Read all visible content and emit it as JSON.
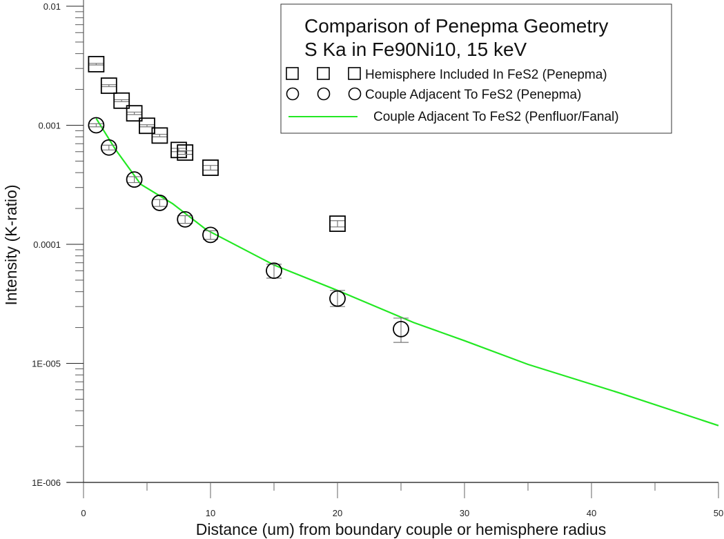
{
  "chart_data": {
    "type": "scatter",
    "title": "Comparison of Penepma Geometry",
    "subtitle": "S Ka in Fe90Ni10, 15 keV",
    "xlabel": "Distance (um) from boundary couple or hemisphere radius",
    "ylabel": "Intensity (K-ratio)",
    "xlim": [
      0,
      50
    ],
    "ylim": [
      1e-06,
      0.01
    ],
    "yscale": "log",
    "grid": false,
    "legend_position": "top-right",
    "x_ticks": [
      "0",
      "10",
      "20",
      "30",
      "40",
      "50"
    ],
    "x_tick_values": [
      0,
      10,
      20,
      30,
      40,
      50
    ],
    "y_ticks": [
      "0.01",
      "0.001",
      "0.0001",
      "1E-005",
      "1E-006"
    ],
    "y_tick_values": [
      0.01,
      0.001,
      0.0001,
      1e-05,
      1e-06
    ],
    "series": [
      {
        "name": "Hemisphere Included In FeS2 (Penepma)",
        "marker": "square",
        "color": "#000000",
        "x": [
          1,
          2,
          3,
          4,
          5,
          6,
          7.5,
          8,
          10,
          20
        ],
        "y": [
          0.00326,
          0.00215,
          0.00161,
          0.00126,
          0.00099,
          0.00082,
          0.00062,
          0.00059,
          0.00044,
          0.000149
        ],
        "err_low": [
          0.00321,
          0.00211,
          0.00158,
          0.00123,
          0.00097,
          0.0008,
          0.0006,
          0.00057,
          0.00042,
          0.00014
        ],
        "err_high": [
          0.00331,
          0.00219,
          0.00164,
          0.00129,
          0.00101,
          0.00084,
          0.00064,
          0.00061,
          0.00046,
          0.000158
        ]
      },
      {
        "name": "Couple Adjacent To FeS2 (Penepma)",
        "marker": "circle",
        "color": "#000000",
        "x": [
          1,
          2,
          4,
          6,
          8,
          10,
          15,
          20,
          25
        ],
        "y": [
          0.001,
          0.00065,
          0.00035,
          0.000223,
          0.000162,
          0.00012,
          6e-05,
          3.5e-05,
          1.94e-05
        ],
        "err_low": [
          0.00097,
          0.00062,
          0.00033,
          0.000208,
          0.00015,
          0.00011,
          5.2e-05,
          3e-05,
          1.5e-05
        ],
        "err_high": [
          0.00103,
          0.00068,
          0.00037,
          0.000238,
          0.000174,
          0.00013,
          6.8e-05,
          4.1e-05,
          2.4e-05
        ]
      },
      {
        "name": "Couple Adjacent To FeS2 (Penfluor/Fanal)",
        "marker": "line",
        "color": "#22e822",
        "x": [
          1,
          2.5,
          4.5,
          7,
          9.7,
          15,
          20,
          26,
          30,
          35,
          42.3,
          50
        ],
        "y": [
          0.00114,
          0.00063,
          0.00032,
          0.00022,
          0.000132,
          6.7e-05,
          4.1e-05,
          2.2e-05,
          1.55e-05,
          9.8e-06,
          5.6e-06,
          3e-06
        ]
      }
    ]
  }
}
